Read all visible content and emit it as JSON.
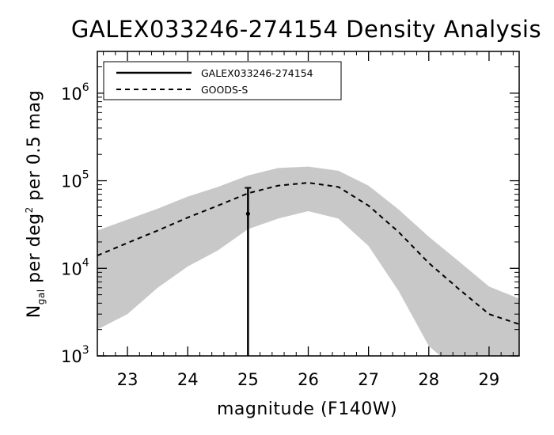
{
  "chart_data": {
    "type": "line",
    "title": "GALEX033246-274154 Density Analysis",
    "xlabel": "magnitude (F140W)",
    "ylabel": {
      "main": "N",
      "sub": "gal",
      "mid": " per deg",
      "sup": "2",
      "tail": " per 0.5 mag"
    },
    "xlim": [
      22.5,
      29.5
    ],
    "ylim": [
      1000,
      3000000
    ],
    "yscale": "log",
    "grid": false,
    "legend_position": "top-left",
    "xticks": [
      23,
      24,
      25,
      26,
      27,
      28,
      29
    ],
    "xtick_labels": [
      "23",
      "24",
      "25",
      "26",
      "27",
      "28",
      "29"
    ],
    "yticks": [
      {
        "value": 1000,
        "base": "10",
        "exp": "3"
      },
      {
        "value": 10000,
        "base": "10",
        "exp": "4"
      },
      {
        "value": 100000,
        "base": "10",
        "exp": "5"
      },
      {
        "value": 1000000,
        "base": "10",
        "exp": "6"
      }
    ],
    "band": {
      "color": "#c8c8c8",
      "x": [
        22.5,
        23.0,
        23.5,
        24.0,
        24.5,
        25.0,
        25.5,
        26.0,
        26.5,
        27.0,
        27.5,
        28.0,
        28.5,
        29.0,
        29.5
      ],
      "upper": [
        27000,
        36000,
        48000,
        66000,
        85000,
        115000,
        140000,
        145000,
        130000,
        88000,
        47000,
        23000,
        12000,
        6200,
        4500
      ],
      "lower": [
        2000,
        3000,
        6000,
        10500,
        16000,
        28000,
        37000,
        45000,
        37000,
        18000,
        5500,
        1300,
        650,
        400,
        300
      ]
    },
    "series": [
      {
        "name": "GALEX033246-274154",
        "style": "solid",
        "points": [
          {
            "x": 25.0,
            "y": 42000,
            "yerr_low": 1000,
            "yerr_high": 83000
          }
        ]
      },
      {
        "name": "GOODS-S",
        "style": "dashed",
        "x": [
          22.5,
          23.0,
          23.5,
          24.0,
          24.5,
          25.0,
          25.5,
          26.0,
          26.5,
          27.0,
          27.5,
          28.0,
          28.5,
          29.0,
          29.5
        ],
        "y": [
          14000,
          19500,
          27000,
          38000,
          52000,
          72000,
          88000,
          95000,
          85000,
          52000,
          26000,
          11500,
          5800,
          3000,
          2300
        ]
      }
    ]
  }
}
